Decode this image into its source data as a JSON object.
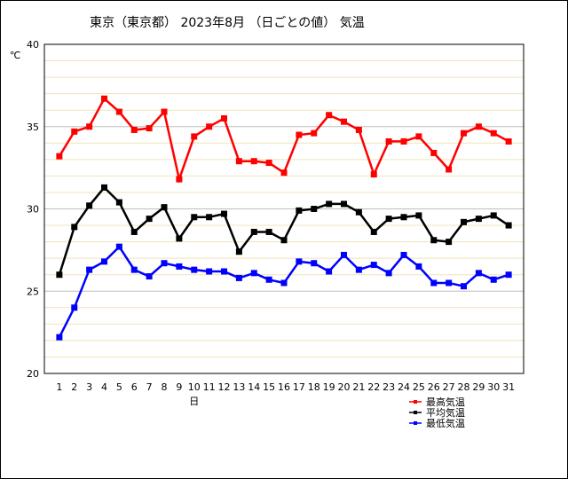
{
  "chart_data": {
    "type": "line",
    "title": "東京（東京都） 2023年8月 （日ごとの値） 気温",
    "ylabel": "℃",
    "xlabel": "日",
    "ylim": [
      20,
      40
    ],
    "yticks": [
      20,
      25,
      30,
      35,
      40
    ],
    "grid": true,
    "legend_position": "bottom-right",
    "x": [
      1,
      2,
      3,
      4,
      5,
      6,
      7,
      8,
      9,
      10,
      11,
      12,
      13,
      14,
      15,
      16,
      17,
      18,
      19,
      20,
      21,
      22,
      23,
      24,
      25,
      26,
      27,
      28,
      29,
      30,
      31
    ],
    "series": [
      {
        "name": "最高気温",
        "color": "#ff0000",
        "values": [
          33.2,
          34.7,
          35.0,
          36.7,
          35.9,
          34.8,
          34.9,
          35.9,
          31.8,
          34.4,
          35.0,
          35.5,
          32.9,
          32.9,
          32.8,
          32.2,
          34.5,
          34.6,
          35.7,
          35.3,
          34.8,
          32.1,
          34.1,
          34.1,
          34.4,
          33.4,
          32.4,
          34.6,
          35.0,
          34.6,
          34.1
        ]
      },
      {
        "name": "平均気温",
        "color": "#000000",
        "values": [
          26.0,
          28.9,
          30.2,
          31.3,
          30.4,
          28.6,
          29.4,
          30.1,
          28.2,
          29.5,
          29.5,
          29.7,
          27.4,
          28.6,
          28.6,
          28.1,
          29.9,
          30.0,
          30.3,
          30.3,
          29.8,
          28.6,
          29.4,
          29.5,
          29.6,
          28.1,
          28.0,
          29.2,
          29.4,
          29.6,
          29.0
        ]
      },
      {
        "name": "最低気温",
        "color": "#0000ff",
        "values": [
          22.2,
          24.0,
          26.3,
          26.8,
          27.7,
          26.3,
          25.9,
          26.7,
          26.5,
          26.3,
          26.2,
          26.2,
          25.8,
          26.1,
          25.7,
          25.5,
          26.8,
          26.7,
          26.2,
          27.2,
          26.3,
          26.6,
          26.1,
          27.2,
          26.5,
          25.5,
          25.5,
          25.3,
          26.1,
          25.7,
          26.0
        ]
      }
    ]
  }
}
